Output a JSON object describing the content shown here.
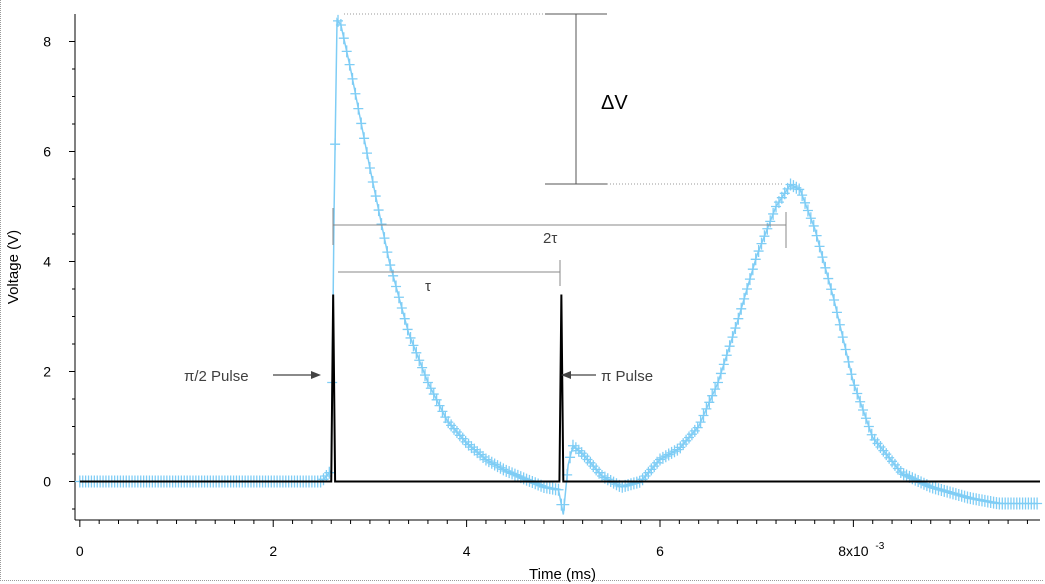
{
  "chart_data": {
    "type": "line",
    "xlabel": "Time (ms)",
    "ylabel": "Voltage (V)",
    "xlim": [
      -0.05,
      9.93
    ],
    "ylim": [
      -0.7,
      8.5
    ],
    "x_ticks": [
      0,
      2,
      4,
      6,
      8
    ],
    "x_tick_labels": [
      "0",
      "2",
      "4",
      "6",
      "8x10"
    ],
    "x_exponent": "-3",
    "y_ticks": [
      0,
      2,
      4,
      6,
      8
    ],
    "y_tick_labels": [
      "0",
      "2",
      "4",
      "6",
      "8"
    ],
    "grid": false,
    "series": [
      {
        "color": "#7fcdf5",
        "marker": "plus",
        "x": [
          0,
          0.5,
          1.0,
          1.5,
          2.0,
          2.5,
          2.6,
          2.63,
          2.66,
          2.7,
          2.8,
          2.9,
          3.0,
          3.2,
          3.4,
          3.6,
          3.8,
          4.0,
          4.2,
          4.4,
          4.6,
          4.8,
          4.95,
          5.0,
          5.05,
          5.1,
          5.2,
          5.3,
          5.4,
          5.6,
          5.8,
          6.0,
          6.2,
          6.4,
          6.6,
          6.8,
          7.0,
          7.2,
          7.35,
          7.45,
          7.6,
          7.8,
          8.0,
          8.2,
          8.5,
          8.8,
          9.0,
          9.2,
          9.5,
          9.9
        ],
        "y": [
          0,
          0,
          0,
          0,
          0,
          0,
          0.2,
          5.0,
          8.4,
          8.3,
          7.5,
          6.6,
          5.7,
          4.0,
          2.7,
          1.8,
          1.1,
          0.7,
          0.4,
          0.2,
          0.05,
          -0.1,
          -0.15,
          -0.6,
          0.3,
          0.65,
          0.5,
          0.3,
          0.1,
          -0.1,
          0.0,
          0.4,
          0.6,
          1.0,
          1.8,
          2.9,
          4.1,
          5.0,
          5.4,
          5.3,
          4.6,
          3.3,
          1.8,
          0.8,
          0.15,
          -0.1,
          -0.2,
          -0.3,
          -0.4,
          -0.4
        ]
      },
      {
        "color": "#000000",
        "x": [
          0,
          2.55,
          2.6,
          2.62,
          2.64,
          2.7,
          4.9,
          4.96,
          4.98,
          5.0,
          5.05,
          9.93
        ],
        "y": [
          0,
          0,
          0,
          3.4,
          0,
          0,
          0,
          0,
          3.4,
          0,
          0,
          0
        ]
      }
    ],
    "annotations": {
      "pi2_pulse": "π/2  Pulse",
      "pi_pulse": "π  Pulse",
      "tau": "τ",
      "two_tau": "2τ",
      "delta_v": "ΔV"
    }
  }
}
